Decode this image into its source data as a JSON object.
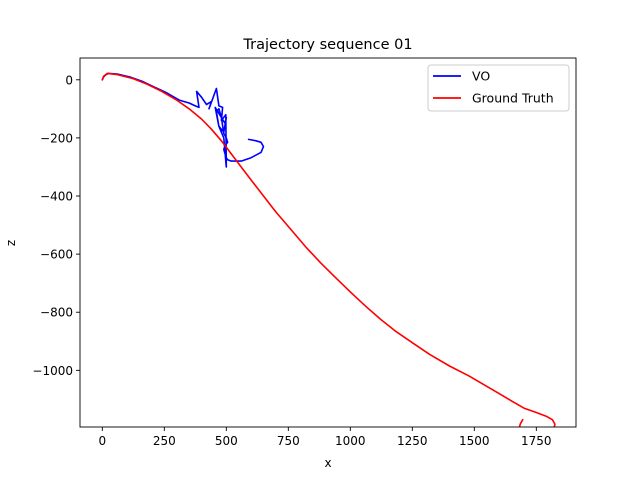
{
  "chart_data": {
    "type": "line",
    "title": "Trajectory sequence 01",
    "xlabel": "x",
    "ylabel": "z",
    "xlim": [
      -90,
      1910
    ],
    "ylim": [
      -1195,
      75
    ],
    "xticks": [
      0,
      250,
      500,
      750,
      1000,
      1250,
      1500,
      1750
    ],
    "xtick_labels": [
      "0",
      "250",
      "500",
      "750",
      "1000",
      "1250",
      "1500",
      "1750"
    ],
    "yticks": [
      0,
      -200,
      -400,
      -600,
      -800,
      -1000
    ],
    "ytick_labels": [
      "0",
      "−200",
      "−400",
      "−600",
      "−800",
      "−1000"
    ],
    "grid": false,
    "legend_position": "upper right",
    "series": [
      {
        "name": "VO",
        "color": "#0000ff",
        "x": [
          0,
          5,
          15,
          25,
          60,
          110,
          160,
          210,
          260,
          310,
          350,
          375,
          390,
          380,
          400,
          420,
          440,
          430,
          460,
          470,
          485,
          480,
          498,
          500,
          490,
          470,
          455,
          495,
          500,
          490,
          470,
          460,
          470,
          480,
          490,
          500,
          505,
          495,
          490,
          495,
          500,
          505,
          520,
          560,
          600,
          640,
          650,
          640,
          620,
          590
        ],
        "y": [
          0,
          10,
          18,
          22,
          20,
          10,
          -5,
          -25,
          -45,
          -70,
          -80,
          -90,
          -95,
          -40,
          -60,
          -85,
          -75,
          -100,
          -30,
          -90,
          -95,
          -140,
          -120,
          -300,
          -200,
          -160,
          -95,
          -150,
          -130,
          -180,
          -160,
          -110,
          -100,
          -130,
          -185,
          -200,
          -215,
          -225,
          -240,
          -255,
          -268,
          -275,
          -280,
          -280,
          -268,
          -250,
          -230,
          -215,
          -210,
          -205
        ],
        "show_legend": true
      },
      {
        "name": "Ground Truth",
        "color": "#ff0000",
        "x": [
          0,
          5,
          20,
          60,
          120,
          180,
          240,
          300,
          350,
          400,
          440,
          480,
          520,
          560,
          600,
          650,
          700,
          760,
          820,
          880,
          940,
          1000,
          1060,
          1120,
          1180,
          1250,
          1320,
          1400,
          1480,
          1550,
          1600,
          1650,
          1700,
          1750,
          1790,
          1815,
          1825,
          1820,
          1800,
          1760,
          1720,
          1690,
          1680,
          1685,
          1695
        ],
        "y": [
          0,
          12,
          22,
          18,
          5,
          -15,
          -40,
          -70,
          -100,
          -135,
          -170,
          -210,
          -255,
          -300,
          -345,
          -400,
          -455,
          -515,
          -575,
          -630,
          -680,
          -730,
          -778,
          -823,
          -864,
          -905,
          -945,
          -985,
          -1020,
          -1055,
          -1080,
          -1105,
          -1130,
          -1145,
          -1158,
          -1170,
          -1185,
          -1205,
          -1220,
          -1230,
          -1232,
          -1225,
          -1205,
          -1185,
          -1170
        ],
        "show_legend": true
      }
    ]
  }
}
